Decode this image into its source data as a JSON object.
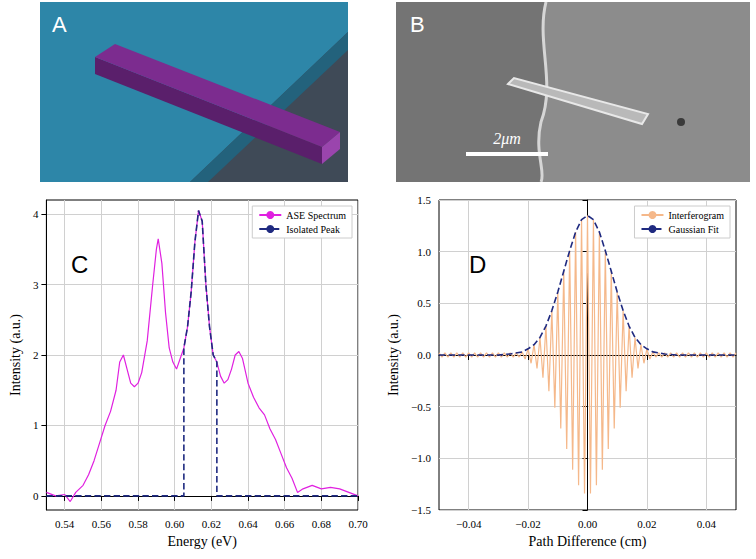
{
  "panels": [
    {
      "letter": "A"
    },
    {
      "letter": "B",
      "scale_bar": "2μm"
    }
  ],
  "chart_data": [
    {
      "type": "line",
      "letter": "C",
      "x_label": "Energy (eV)",
      "y_label": "Intensity (a.u.)",
      "xlim": [
        0.53,
        0.7
      ],
      "ylim": [
        -0.2,
        4.2
      ],
      "xticks": [
        0.54,
        0.56,
        0.58,
        {
          "value": 0.6,
          "label": "0.60"
        },
        0.62,
        0.64,
        0.66,
        0.68,
        {
          "value": 0.7,
          "label": "0.70"
        }
      ],
      "yticks": [
        0,
        1,
        2,
        3,
        4
      ],
      "grid": true,
      "legend": "upper right",
      "series": [
        {
          "name": "ASE Spectrum",
          "color": "#e020e0",
          "line_style": "solid",
          "x": [
            0.53,
            0.535,
            0.54,
            0.543,
            0.546,
            0.55,
            0.553,
            0.556,
            0.559,
            0.562,
            0.565,
            0.568,
            0.57,
            0.572,
            0.574,
            0.576,
            0.578,
            0.58,
            0.582,
            0.585,
            0.588,
            0.59,
            0.591,
            0.593,
            0.595,
            0.597,
            0.599,
            0.601,
            0.603,
            0.605,
            0.607,
            0.609,
            0.611,
            0.613,
            0.615,
            0.617,
            0.619,
            0.621,
            0.623,
            0.625,
            0.627,
            0.629,
            0.631,
            0.633,
            0.635,
            0.637,
            0.64,
            0.643,
            0.646,
            0.649,
            0.652,
            0.655,
            0.658,
            0.661,
            0.664,
            0.667,
            0.67,
            0.675,
            0.68,
            0.685,
            0.69,
            0.695,
            0.7
          ],
          "values": [
            0.05,
            0,
            0.02,
            -0.08,
            0.05,
            0.15,
            0.3,
            0.5,
            0.75,
            1.0,
            1.2,
            1.5,
            1.9,
            2.0,
            1.8,
            1.6,
            1.55,
            1.6,
            1.75,
            2.2,
            3.0,
            3.5,
            3.65,
            3.3,
            2.6,
            2.1,
            1.9,
            1.8,
            1.95,
            2.1,
            2.4,
            2.9,
            3.6,
            4.05,
            3.9,
            3.0,
            2.4,
            2.0,
            1.9,
            1.7,
            1.6,
            1.65,
            1.8,
            2.0,
            2.05,
            1.95,
            1.6,
            1.4,
            1.25,
            1.15,
            0.95,
            0.8,
            0.6,
            0.4,
            0.25,
            0.05,
            0.1,
            0.15,
            0.1,
            0.12,
            0.1,
            0.05,
            0
          ]
        },
        {
          "name": "Isolated Peak",
          "color": "#1f2a80",
          "line_style": "dashed",
          "x": [
            0.53,
            0.605,
            0.605,
            0.607,
            0.609,
            0.611,
            0.613,
            0.615,
            0.617,
            0.619,
            0.621,
            0.623,
            0.623,
            0.7
          ],
          "values": [
            0,
            0,
            2.1,
            2.4,
            2.9,
            3.6,
            4.05,
            3.9,
            3.0,
            2.4,
            2.0,
            1.9,
            0,
            0
          ]
        }
      ]
    },
    {
      "type": "line",
      "letter": "D",
      "x_label": "Path Difference (cm)",
      "y_label": "Intensity (a.u.)",
      "xlim": [
        -0.05,
        0.05
      ],
      "ylim": [
        -1.5,
        1.5
      ],
      "xticks": [
        {
          "value": -0.04,
          "label": "−0.04"
        },
        {
          "value": -0.02,
          "label": "−0.02"
        },
        {
          "value": 0,
          "label": "0.00"
        },
        0.02,
        0.04
      ],
      "yticks": [
        {
          "value": -1.5,
          "label": "−1.5"
        },
        {
          "value": -1,
          "label": "−1.0"
        },
        {
          "value": -0.5,
          "label": "−0.5"
        },
        {
          "value": 0,
          "label": "0.0"
        },
        0.5,
        {
          "value": 1,
          "label": "1.0"
        },
        1.5
      ],
      "grid": true,
      "legend": "upper right",
      "series": [
        {
          "name": "Interferogram",
          "color": "#f5b88a",
          "line_style": "solid",
          "x": [
            -0.05,
            -0.049,
            -0.048,
            -0.047,
            -0.046,
            -0.045,
            -0.044,
            -0.043,
            -0.042,
            -0.041,
            -0.04,
            -0.039,
            -0.038,
            -0.037,
            -0.036,
            -0.035,
            -0.034,
            -0.033,
            -0.032,
            -0.031,
            -0.03,
            -0.029,
            -0.028,
            -0.027,
            -0.026,
            -0.025,
            -0.024,
            -0.023,
            -0.022,
            -0.021,
            -0.02,
            -0.019,
            -0.018,
            -0.017,
            -0.016,
            -0.015,
            -0.014,
            -0.013,
            -0.012,
            -0.011,
            -0.01,
            -0.009,
            -0.008,
            -0.007,
            -0.006,
            -0.005,
            -0.004,
            -0.003,
            -0.002,
            -0.001,
            0,
            0.001,
            0.002,
            0.003,
            0.004,
            0.005,
            0.006,
            0.007,
            0.008,
            0.009,
            0.01,
            0.011,
            0.012,
            0.013,
            0.014,
            0.015,
            0.016,
            0.017,
            0.018,
            0.019,
            0.02,
            0.021,
            0.022,
            0.023,
            0.024,
            0.025,
            0.026,
            0.027,
            0.028,
            0.029,
            0.03,
            0.031,
            0.032,
            0.033,
            0.034,
            0.035,
            0.036,
            0.037,
            0.038,
            0.039,
            0.04,
            0.041,
            0.042,
            0.043,
            0.044,
            0.045,
            0.046,
            0.047,
            0.048,
            0.049,
            0.05
          ],
          "values": [
            0.02,
            -0.02,
            0.02,
            -0.02,
            0.02,
            -0.02,
            0.02,
            -0.02,
            0.02,
            -0.02,
            0.02,
            -0.02,
            0.02,
            -0.02,
            0.02,
            -0.02,
            0.02,
            -0.02,
            0.02,
            -0.02,
            0.02,
            -0.02,
            0.02,
            -0.02,
            0.02,
            -0.02,
            0.02,
            -0.02,
            0.03,
            -0.04,
            0.06,
            -0.08,
            0.1,
            -0.13,
            0.17,
            -0.22,
            0.28,
            -0.35,
            0.43,
            -0.51,
            0.61,
            -0.71,
            0.81,
            -0.91,
            1.01,
            -1.11,
            1.19,
            -1.26,
            1.31,
            -1.34,
            1.35,
            -1.34,
            1.31,
            -1.26,
            1.19,
            -1.11,
            1.01,
            -0.91,
            0.81,
            -0.71,
            0.61,
            -0.51,
            0.43,
            -0.35,
            0.28,
            -0.22,
            0.17,
            -0.13,
            0.1,
            -0.08,
            0.06,
            -0.04,
            0.03,
            -0.02,
            0.02,
            -0.02,
            0.02,
            -0.02,
            0.02,
            -0.02,
            0.02,
            -0.02,
            0.02,
            -0.02,
            0.02,
            -0.02,
            0.02,
            -0.02,
            0.02,
            -0.02,
            0.02,
            -0.02,
            0.02,
            -0.02,
            0.02,
            -0.02,
            0.02,
            -0.02,
            0.02,
            -0.02,
            0.02
          ]
        },
        {
          "name": "Gaussian Fit",
          "color": "#1f2a80",
          "line_style": "dashed",
          "x": [
            -0.05,
            -0.04,
            -0.03,
            -0.026,
            -0.022,
            -0.02,
            -0.018,
            -0.016,
            -0.014,
            -0.012,
            -0.01,
            -0.008,
            -0.006,
            -0.004,
            -0.002,
            0,
            0.002,
            0.004,
            0.006,
            0.008,
            0.01,
            0.012,
            0.014,
            0.016,
            0.018,
            0.02,
            0.022,
            0.026,
            0.03,
            0.04,
            0.05
          ],
          "values": [
            0,
            0,
            0,
            0.01,
            0.03,
            0.06,
            0.1,
            0.17,
            0.28,
            0.43,
            0.61,
            0.81,
            1.01,
            1.19,
            1.31,
            1.35,
            1.31,
            1.19,
            1.01,
            0.81,
            0.61,
            0.43,
            0.28,
            0.17,
            0.1,
            0.06,
            0.03,
            0.01,
            0,
            0,
            0
          ]
        }
      ]
    }
  ]
}
